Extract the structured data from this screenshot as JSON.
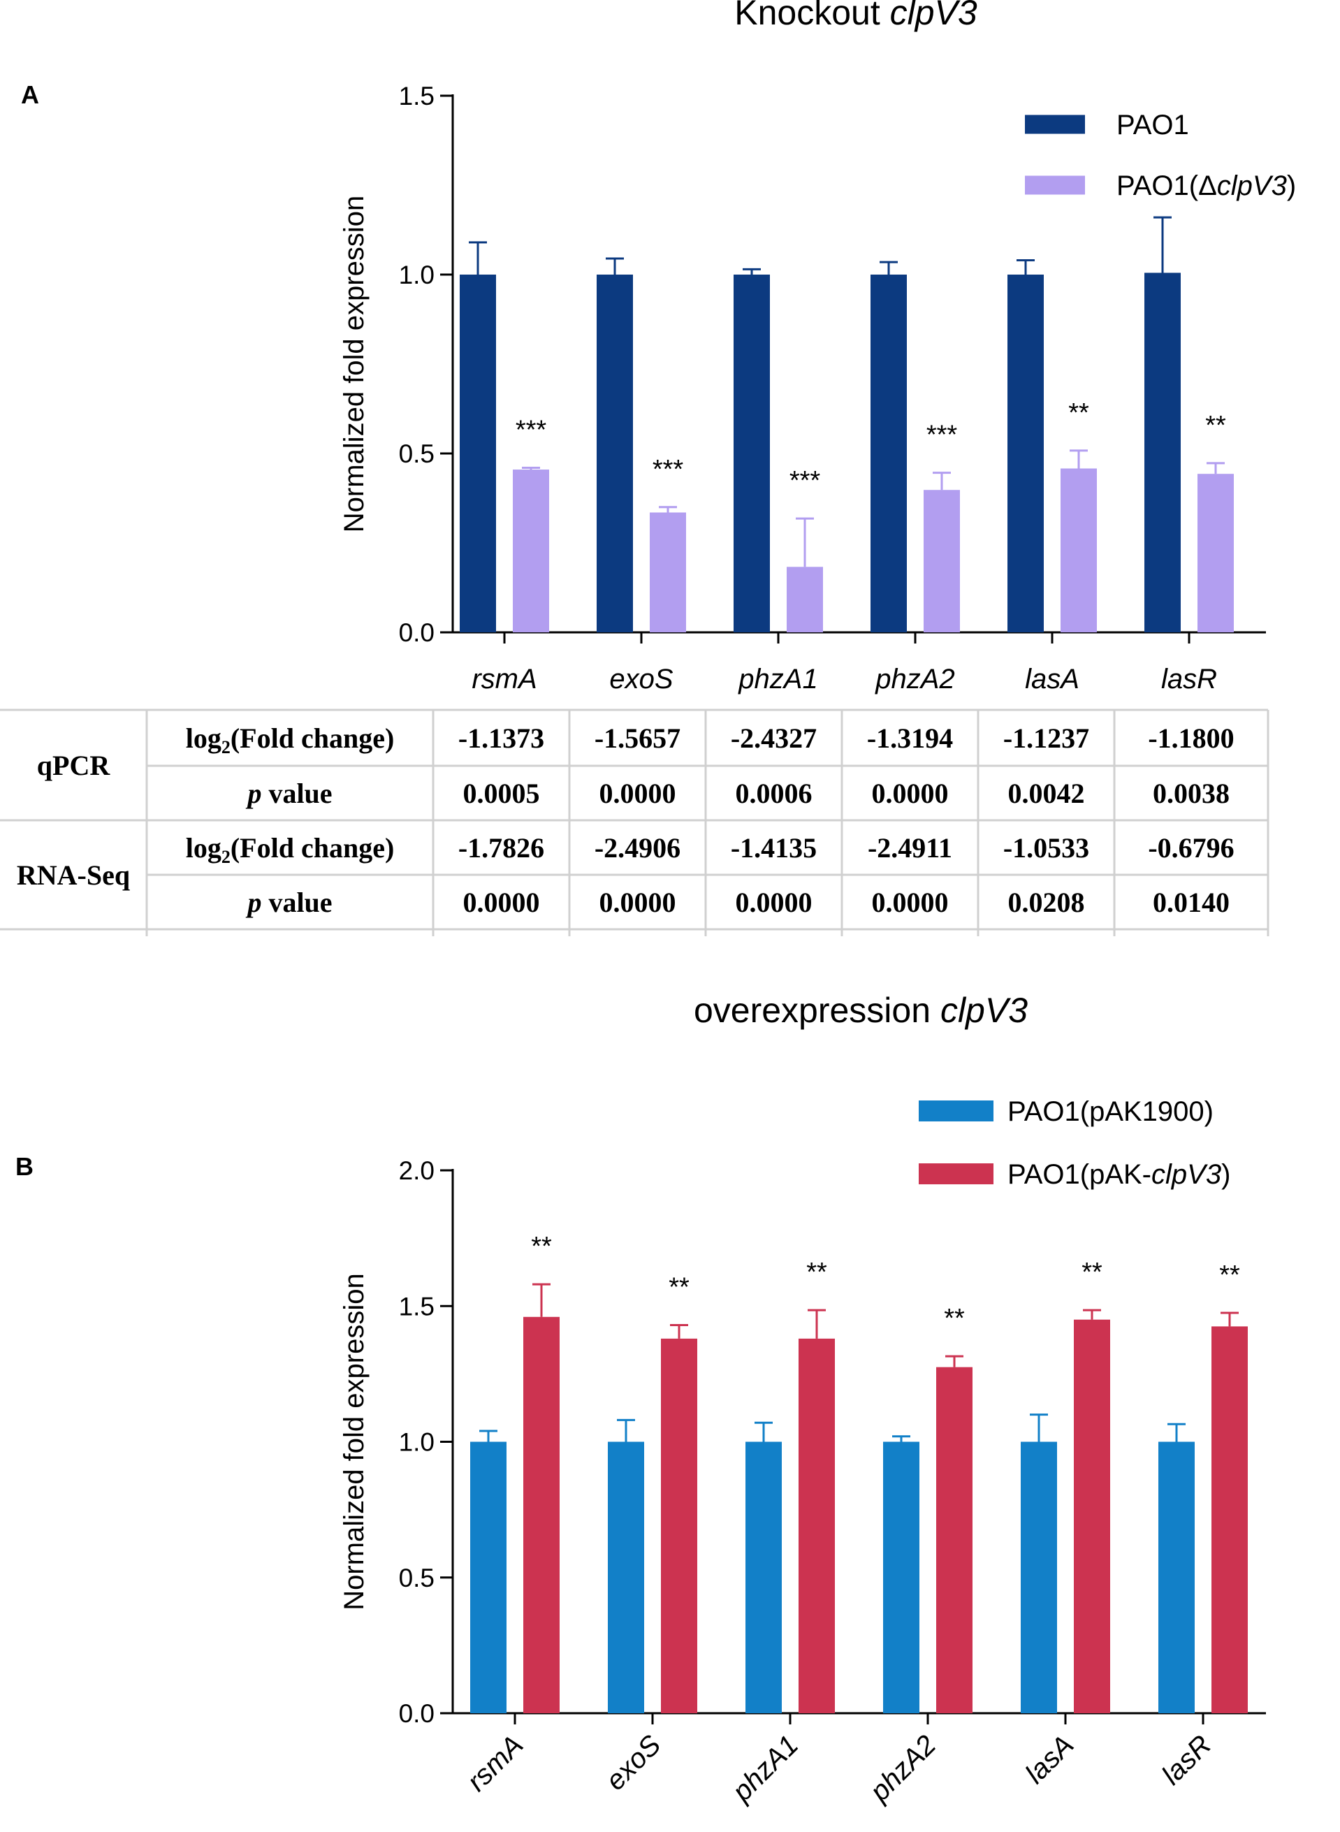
{
  "chart_data": [
    {
      "panel": "A",
      "type": "bar",
      "title_plain": "Knockout ",
      "title_italic": "clpV3",
      "ylabel": "Normalized fold expression",
      "xlabel": "",
      "ylim": [
        0,
        1.5
      ],
      "yticks": [
        "0.0",
        "0.5",
        "1.0",
        "1.5"
      ],
      "grid": false,
      "legend_position": "top-right",
      "categories": [
        "rsmA",
        "exoS",
        "phzA1",
        "phzA2",
        "lasA",
        "lasR"
      ],
      "series": [
        {
          "name": "PAO1",
          "legend_parts": [
            "PAO1",
            "",
            ""
          ],
          "color": "#0c3a80",
          "values": [
            1.0,
            1.0,
            1.0,
            1.0,
            1.0,
            1.005
          ],
          "errors": [
            0.09,
            0.045,
            0.015,
            0.035,
            0.04,
            0.155
          ]
        },
        {
          "name": "PAO1(ΔclpV3)",
          "legend_parts": [
            "PAO1(Δ",
            "clpV3",
            ")"
          ],
          "color": "#b29ef0",
          "values": [
            0.455,
            0.335,
            0.183,
            0.398,
            0.458,
            0.443
          ],
          "errors": [
            0.005,
            0.015,
            0.135,
            0.048,
            0.05,
            0.03
          ]
        }
      ],
      "significance": [
        "***",
        "***",
        "***",
        "***",
        "**",
        "**"
      ],
      "table": {
        "headers": [
          "rsmA",
          "exoS",
          "phzA1",
          "phzA2",
          "lasA",
          "lasR"
        ],
        "groups": [
          {
            "label": "qPCR",
            "rows": [
              {
                "label_pre": "log",
                "label_sub": "2",
                "label_post": "(Fold change)",
                "values": [
                  "-1.1373",
                  "-1.5657",
                  "-2.4327",
                  "-1.3194",
                  "-1.1237",
                  "-1.1800"
                ]
              },
              {
                "label_italic": "p",
                "label_post": " value",
                "values": [
                  "0.0005",
                  "0.0000",
                  "0.0006",
                  "0.0000",
                  "0.0042",
                  "0.0038"
                ]
              }
            ]
          },
          {
            "label": "RNA-Seq",
            "rows": [
              {
                "label_pre": "log",
                "label_sub": "2",
                "label_post": "(Fold change)",
                "values": [
                  "-1.7826",
                  "-2.4906",
                  "-1.4135",
                  "-2.4911",
                  "-1.0533",
                  "-0.6796"
                ]
              },
              {
                "label_italic": "p",
                "label_post": " value",
                "values": [
                  "0.0000",
                  "0.0000",
                  "0.0000",
                  "0.0000",
                  "0.0208",
                  "0.0140"
                ]
              }
            ]
          }
        ]
      }
    },
    {
      "panel": "B",
      "type": "bar",
      "title_plain": "overexpression ",
      "title_italic": "clpV3",
      "ylabel": "Normalized fold expression",
      "xlabel": "",
      "ylim": [
        0,
        2.0
      ],
      "yticks": [
        "0.0",
        "0.5",
        "1.0",
        "1.5",
        "2.0"
      ],
      "grid": false,
      "legend_position": "top-right",
      "categories": [
        "rsmA",
        "exoS",
        "phzA1",
        "phzA2",
        "lasA",
        "lasR"
      ],
      "series": [
        {
          "name": "PAO1(pAK1900)",
          "legend_parts": [
            "PAO1(pAK1900)",
            "",
            ""
          ],
          "color": "#1280c8",
          "values": [
            1.0,
            1.0,
            1.0,
            1.0,
            1.0,
            1.0
          ],
          "errors": [
            0.04,
            0.08,
            0.07,
            0.02,
            0.1,
            0.065
          ]
        },
        {
          "name": "PAO1(pAK-clpV3)",
          "legend_parts": [
            "PAO1(pAK-",
            "clpV3",
            ")"
          ],
          "color": "#cc3350",
          "values": [
            1.46,
            1.38,
            1.38,
            1.275,
            1.45,
            1.425
          ],
          "errors": [
            0.12,
            0.05,
            0.105,
            0.04,
            0.035,
            0.05
          ]
        }
      ],
      "significance": [
        "**",
        "**",
        "**",
        "**",
        "**",
        "**"
      ]
    }
  ]
}
